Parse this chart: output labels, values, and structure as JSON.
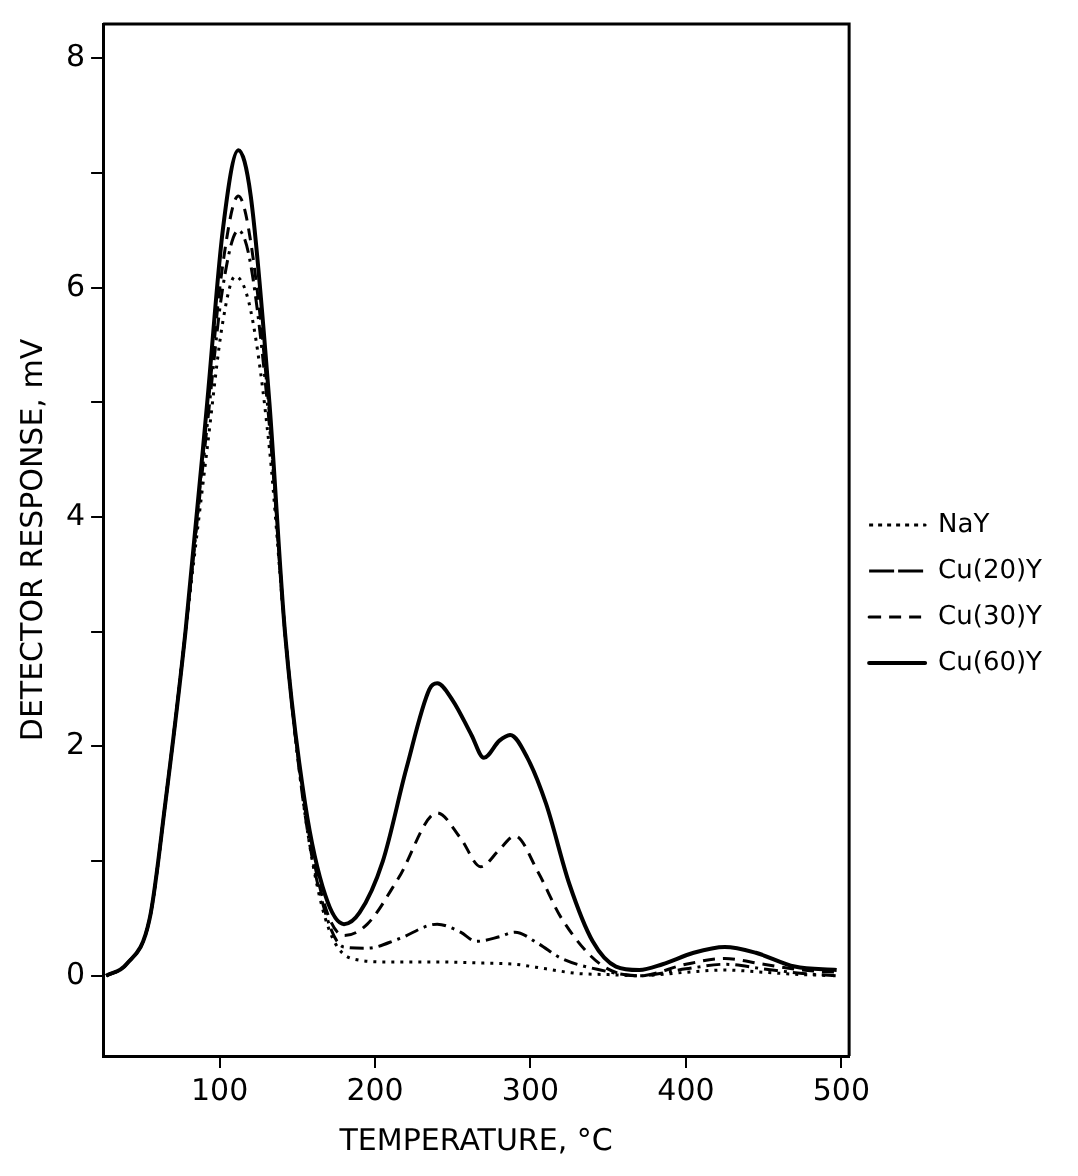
{
  "chart_data": {
    "type": "line",
    "xlabel": "TEMPERATURE, °C",
    "ylabel": "DETECTOR RESPONSE, mV",
    "xlim": [
      25,
      505
    ],
    "ylim": [
      -0.7,
      8.3
    ],
    "xticks": [
      100,
      200,
      300,
      400,
      500
    ],
    "yticks": [
      0,
      {
        "value": 1,
        "label": null
      },
      2,
      {
        "value": 3,
        "label": null
      },
      4,
      {
        "value": 5,
        "label": null
      },
      6,
      {
        "value": 7,
        "label": null
      },
      8
    ],
    "grid": false,
    "legend": "right",
    "marker": "none",
    "series": [
      {
        "name": "NaY",
        "color": "#000000",
        "line_style": "dotted",
        "x": [
          27,
          40,
          55,
          65,
          78,
          92,
          102,
          110,
          120,
          132,
          142,
          155,
          168,
          185,
          210,
          240,
          270,
          290,
          310,
          330,
          350,
          370,
          400,
          425,
          450,
          475,
          497
        ],
        "values": [
          0,
          0.1,
          0.5,
          1.5,
          3,
          4.6,
          5.7,
          6.1,
          5.8,
          4.6,
          3,
          1.4,
          0.5,
          0.15,
          0.12,
          0.12,
          0.11,
          0.1,
          0.06,
          0.02,
          0.01,
          0,
          0.03,
          0.05,
          0.03,
          0.01,
          0
        ]
      },
      {
        "name": "Cu(20)Y",
        "color": "#000000",
        "line_style": "dashdot",
        "x": [
          27,
          40,
          55,
          65,
          78,
          92,
          102,
          112,
          120,
          132,
          142,
          155,
          168,
          180,
          195,
          215,
          240,
          255,
          265,
          280,
          290,
          305,
          320,
          345,
          370,
          400,
          425,
          450,
          475,
          497
        ],
        "values": [
          0,
          0.1,
          0.5,
          1.5,
          3,
          4.8,
          6,
          6.5,
          6.2,
          4.8,
          3,
          1.4,
          0.55,
          0.25,
          0.24,
          0.32,
          0.45,
          0.38,
          0.3,
          0.34,
          0.38,
          0.28,
          0.15,
          0.05,
          0,
          0.06,
          0.1,
          0.06,
          0.02,
          0
        ]
      },
      {
        "name": "Cu(30)Y",
        "color": "#000000",
        "line_style": "dashed",
        "x": [
          27,
          40,
          55,
          65,
          78,
          92,
          102,
          112,
          120,
          132,
          142,
          155,
          168,
          180,
          195,
          215,
          240,
          255,
          268,
          280,
          290,
          305,
          320,
          345,
          370,
          400,
          425,
          450,
          475,
          497
        ],
        "values": [
          0,
          0.1,
          0.5,
          1.5,
          3,
          4.9,
          6.2,
          6.8,
          6.4,
          4.9,
          3,
          1.45,
          0.6,
          0.35,
          0.45,
          0.85,
          1.42,
          1.2,
          0.95,
          1.1,
          1.22,
          0.9,
          0.5,
          0.1,
          0,
          0.1,
          0.15,
          0.1,
          0.05,
          0.03
        ]
      },
      {
        "name": "Cu(60)Y",
        "color": "#000000",
        "line_style": "solid",
        "x": [
          27,
          40,
          55,
          65,
          78,
          92,
          102,
          112,
          120,
          132,
          142,
          155,
          168,
          180,
          190,
          205,
          220,
          235,
          240,
          250,
          262,
          270,
          280,
          287,
          298,
          310,
          325,
          340,
          355,
          370,
          385,
          405,
          425,
          445,
          470,
          497
        ],
        "values": [
          0,
          0.1,
          0.5,
          1.5,
          3,
          5,
          6.5,
          7.2,
          6.8,
          5,
          3,
          1.5,
          0.7,
          0.45,
          0.55,
          1,
          1.8,
          2.5,
          2.55,
          2.4,
          2.1,
          1.9,
          2.05,
          2.1,
          1.9,
          1.5,
          0.8,
          0.3,
          0.08,
          0.05,
          0.1,
          0.2,
          0.25,
          0.2,
          0.08,
          0.05
        ]
      }
    ]
  }
}
